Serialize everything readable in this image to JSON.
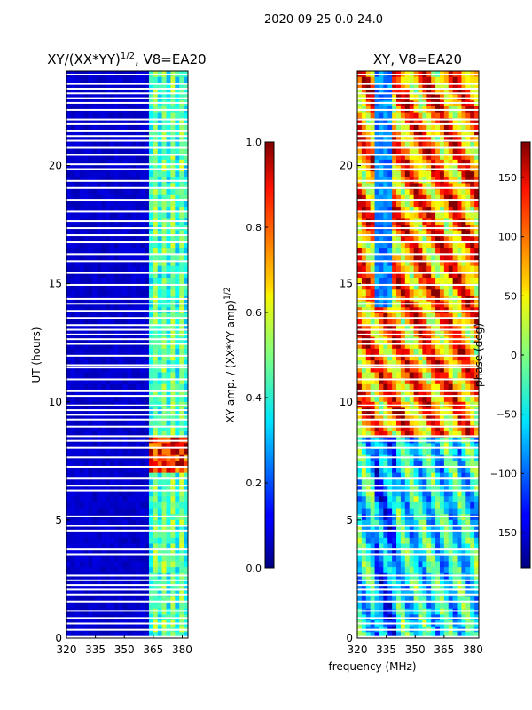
{
  "figure": {
    "suptitle": "2020-09-25 0.0-24.0",
    "xlabel": "frequency (MHz)",
    "ylabel": "UT (hours)"
  },
  "chart_data": [
    {
      "type": "heatmap",
      "title": "XY/(XX*YY)^1/2, V8=EA20",
      "title_main": "XY/(XX*YY)",
      "title_exp": "1/2",
      "title_suffix": ", V8=EA20",
      "xlabel": "frequency (MHz)",
      "ylabel": "UT (hours)",
      "xlim": [
        320,
        383
      ],
      "ylim": [
        0,
        24
      ],
      "xticks": [
        320,
        335,
        350,
        365,
        380
      ],
      "yticks": [
        0,
        5,
        10,
        15,
        20
      ],
      "colorbar": {
        "label": "XY amp. / (XX*YY amp)^1/2",
        "label_main": "XY amp. / (XX*YY amp)",
        "label_exp": "1/2",
        "range": [
          0.0,
          1.0
        ],
        "ticks": [
          "0.0",
          "0.2",
          "0.4",
          "0.6",
          "0.8",
          "1.0"
        ],
        "colormap": "jet"
      }
    },
    {
      "type": "heatmap",
      "title": "XY, V8=EA20",
      "xlabel": "frequency (MHz)",
      "xlim": [
        320,
        383
      ],
      "ylim": [
        0,
        24
      ],
      "xticks": [
        320,
        335,
        350,
        365,
        380
      ],
      "yticks": [
        0,
        5,
        10,
        15,
        20
      ],
      "colorbar": {
        "label": "phase (deg)",
        "range": [
          -180,
          180
        ],
        "ticks": [
          "−150",
          "−100",
          "−50",
          "0",
          "50",
          "100",
          "150"
        ],
        "tick_values": [
          -150,
          -100,
          -50,
          0,
          50,
          100,
          150
        ],
        "colormap": "jet"
      }
    }
  ],
  "flagged_time_rows_hours": [
    0.05,
    0.35,
    0.62,
    0.85,
    1.15,
    1.55,
    1.85,
    2.05,
    2.25,
    2.45,
    2.65,
    3.55,
    3.75,
    4.55,
    4.75,
    5.15,
    6.25,
    6.45,
    6.75,
    7.25,
    7.65,
    8.05,
    8.35,
    8.55,
    8.95,
    9.25,
    9.45,
    9.65,
    9.85,
    10.25,
    10.45,
    10.95,
    11.45,
    11.55,
    11.95,
    12.45,
    12.65,
    12.85,
    13.05,
    13.25,
    13.55,
    13.85,
    14.15,
    14.35,
    14.95,
    15.45,
    15.95,
    16.25,
    16.75,
    17.05,
    17.35,
    17.65,
    18.05,
    18.55,
    19.05,
    19.35,
    19.85,
    20.05,
    20.45,
    20.75,
    21.05,
    21.25,
    21.45,
    21.75,
    21.95,
    22.35,
    22.65,
    22.85,
    23.05,
    23.25,
    23.45,
    23.85
  ]
}
